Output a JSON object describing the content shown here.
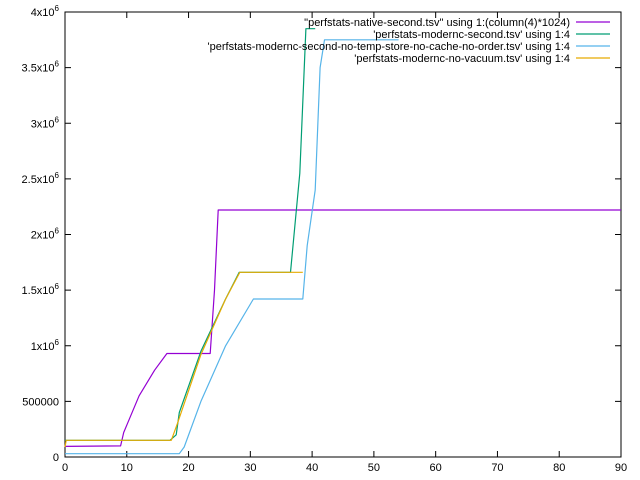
{
  "chart_data": {
    "type": "line",
    "title": "",
    "xlabel": "",
    "ylabel": "",
    "xlim": [
      0,
      90
    ],
    "ylim": [
      0,
      4000000
    ],
    "grid": false,
    "legend_position": "top-right",
    "x_ticks": [
      {
        "value": 0,
        "label": "0"
      },
      {
        "value": 10,
        "label": "10"
      },
      {
        "value": 20,
        "label": "20"
      },
      {
        "value": 30,
        "label": "30"
      },
      {
        "value": 40,
        "label": "40"
      },
      {
        "value": 50,
        "label": "50"
      },
      {
        "value": 60,
        "label": "60"
      },
      {
        "value": 70,
        "label": "70"
      },
      {
        "value": 80,
        "label": "80"
      },
      {
        "value": 90,
        "label": "90"
      }
    ],
    "y_ticks": [
      {
        "value": 0,
        "base": "0",
        "exp": ""
      },
      {
        "value": 500000,
        "base": "500000",
        "exp": ""
      },
      {
        "value": 1000000,
        "base": "1x10",
        "exp": "6"
      },
      {
        "value": 1500000,
        "base": "1.5x10",
        "exp": "6"
      },
      {
        "value": 2000000,
        "base": "2x10",
        "exp": "6"
      },
      {
        "value": 2500000,
        "base": "2.5x10",
        "exp": "6"
      },
      {
        "value": 3000000,
        "base": "3x10",
        "exp": "6"
      },
      {
        "value": 3500000,
        "base": "3.5x10",
        "exp": "6"
      },
      {
        "value": 4000000,
        "base": "4x10",
        "exp": "6"
      }
    ],
    "series": [
      {
        "name": "\"perfstats-native-second.tsv\" using 1:(column(4)*1024)",
        "color": "#9400d3",
        "points": [
          [
            0,
            95000
          ],
          [
            9,
            100000
          ],
          [
            9.5,
            220000
          ],
          [
            12,
            550000
          ],
          [
            14.5,
            780000
          ],
          [
            16.5,
            930000
          ],
          [
            23.5,
            930000
          ],
          [
            24.2,
            1500000
          ],
          [
            24.8,
            2220000
          ],
          [
            90,
            2220000
          ]
        ]
      },
      {
        "name": "'perfstats-modernc-second.tsv' using 1:4",
        "color": "#009e73",
        "points": [
          [
            0,
            150000
          ],
          [
            17,
            150000
          ],
          [
            18,
            200000
          ],
          [
            18.5,
            400000
          ],
          [
            22,
            950000
          ],
          [
            26,
            1420000
          ],
          [
            28.2,
            1660000
          ],
          [
            36.5,
            1660000
          ],
          [
            38,
            2550000
          ],
          [
            39,
            3850000
          ],
          [
            40.5,
            3850000
          ]
        ]
      },
      {
        "name": "'perfstats-modernc-second-no-temp-store-no-cache-no-order.tsv' using 1:4",
        "color": "#56b4e9",
        "points": [
          [
            0,
            30000
          ],
          [
            18.5,
            30000
          ],
          [
            19.3,
            90000
          ],
          [
            22,
            500000
          ],
          [
            26,
            1000000
          ],
          [
            30.5,
            1420000
          ],
          [
            38.5,
            1420000
          ],
          [
            39.2,
            1900000
          ],
          [
            40.5,
            2400000
          ],
          [
            41.3,
            3500000
          ],
          [
            42,
            3750000
          ],
          [
            54,
            3750000
          ]
        ]
      },
      {
        "name": "'perfstats-modernc-no-vacuum.tsv' using 1:4",
        "color": "#e6ab02",
        "points": [
          [
            0,
            90000
          ],
          [
            0.2,
            150000
          ],
          [
            17.2,
            150000
          ],
          [
            18.2,
            300000
          ],
          [
            22,
            920000
          ],
          [
            26,
            1420000
          ],
          [
            28.3,
            1660000
          ],
          [
            38.5,
            1660000
          ]
        ]
      }
    ]
  }
}
